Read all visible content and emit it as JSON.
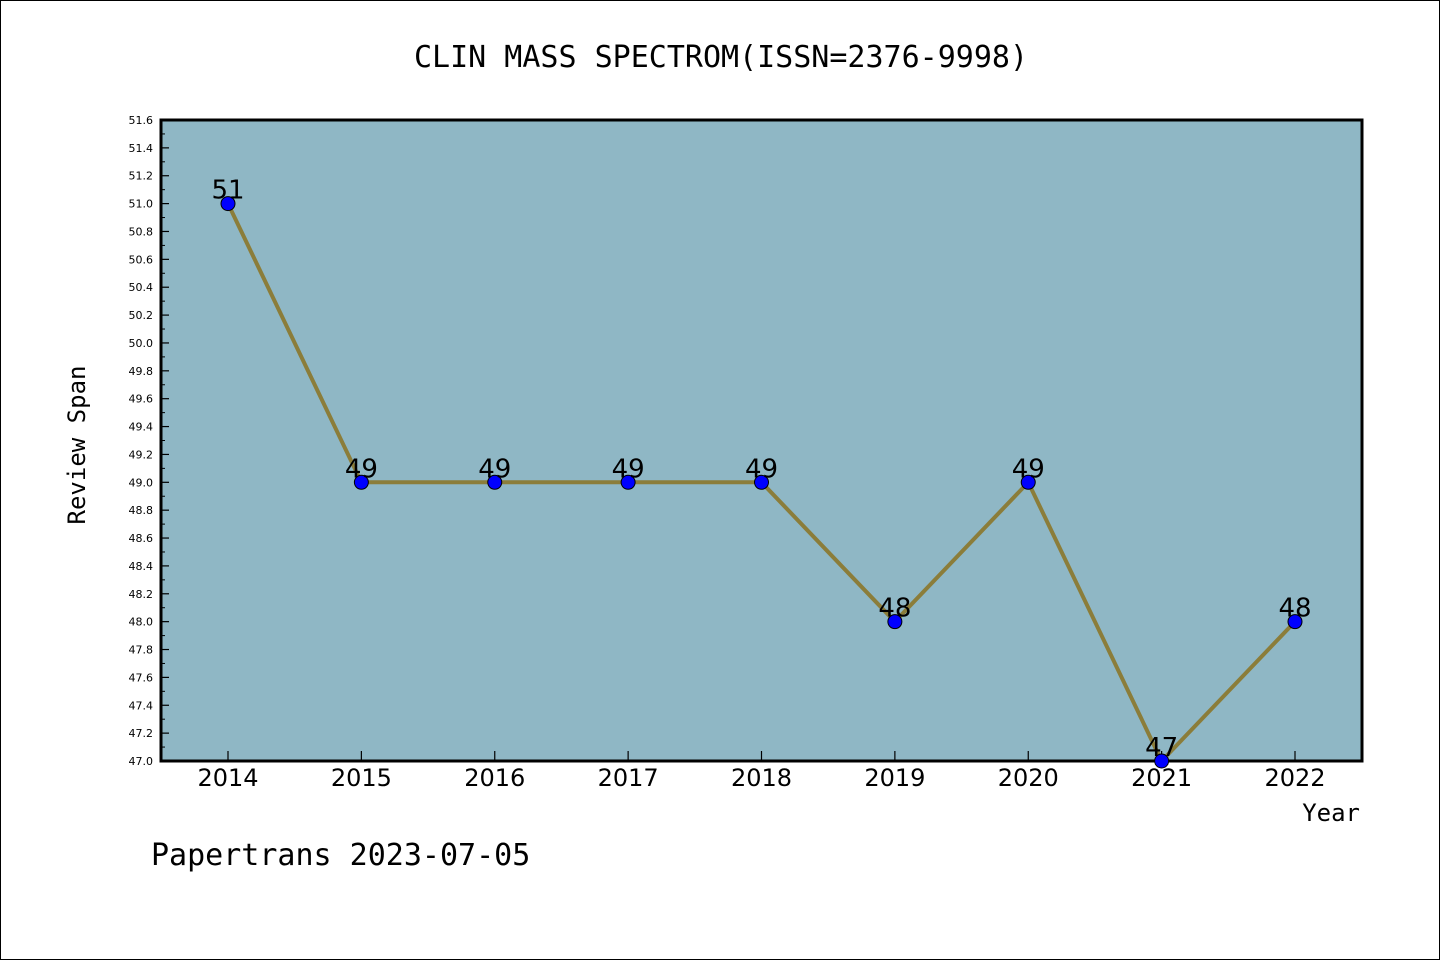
{
  "chart_data": {
    "type": "line",
    "title": "CLIN MASS SPECTROM(ISSN=2376-9998)",
    "xlabel": "Year",
    "ylabel": "Review Span",
    "categories": [
      "2014",
      "2015",
      "2016",
      "2017",
      "2018",
      "2019",
      "2020",
      "2021",
      "2022"
    ],
    "series": [
      {
        "values": [
          51,
          49,
          49,
          49,
          49,
          48,
          49,
          47,
          48
        ]
      }
    ],
    "data_labels": [
      "51",
      "49",
      "49",
      "49",
      "49",
      "48",
      "49",
      "47",
      "48"
    ],
    "ylim": [
      47.0,
      51.6
    ],
    "ytick_labels": [
      "47.0",
      "47.2",
      "47.4",
      "47.6",
      "47.8",
      "48.0",
      "48.2",
      "48.4",
      "48.6",
      "48.8",
      "49.0",
      "49.2",
      "49.4",
      "49.6",
      "49.8",
      "50.0",
      "50.2",
      "50.4",
      "50.6",
      "50.8",
      "51.0",
      "51.2",
      "51.4",
      "51.6"
    ],
    "grid": false,
    "legend": "none",
    "colors": {
      "plot_background": "#8fb7c5",
      "line": "#8b7d3a",
      "marker": "#0000ff",
      "marker_edge": "#000000"
    }
  },
  "footer": {
    "text": "Papertrans 2023-07-05"
  }
}
